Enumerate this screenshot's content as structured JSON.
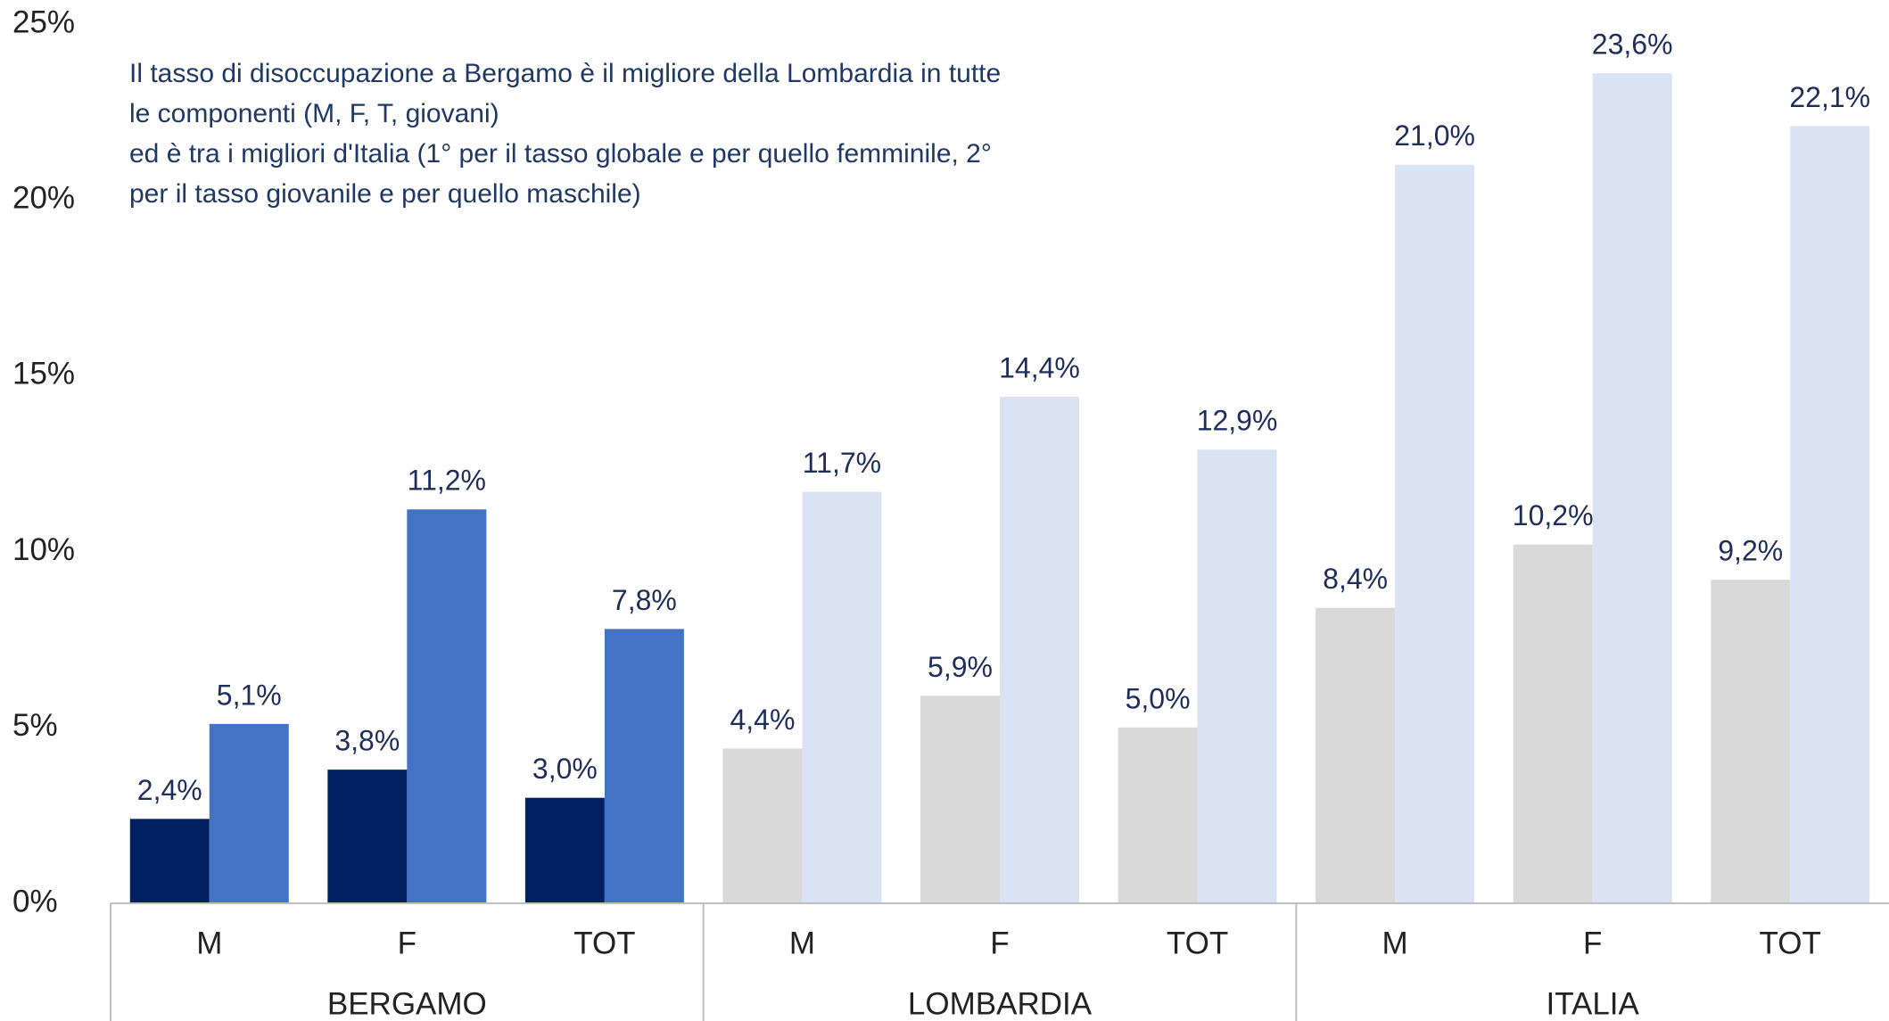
{
  "chart_data": {
    "type": "bar",
    "annotation": [
      "Il tasso di disoccupazione a Bergamo è il migliore della Lombardia in tutte",
      "le componenti (M, F, T, giovani)",
      "ed è tra i migliori d'Italia (1° per il tasso globale e per quello femminile, 2°",
      "per il tasso giovanile e per quello maschile)"
    ],
    "categories": [
      "M",
      "F",
      "TOT",
      "M",
      "F",
      "TOT",
      "M",
      "F",
      "TOT"
    ],
    "groups": [
      "BERGAMO",
      "LOMBARDIA",
      "ITALIA"
    ],
    "series": [
      {
        "colors": [
          "#002060",
          "#002060",
          "#002060",
          "#d9d9d9",
          "#d9d9d9",
          "#d9d9d9",
          "#d9d9d9",
          "#d9d9d9",
          "#d9d9d9"
        ],
        "values": [
          2.4,
          3.8,
          3.0,
          4.4,
          5.9,
          5.0,
          8.4,
          10.2,
          9.2
        ],
        "value_labels": [
          "2,4%",
          "3,8%",
          "3,0%",
          "4,4%",
          "5,9%",
          "5,0%",
          "8,4%",
          "10,2%",
          "9,2%"
        ]
      },
      {
        "colors": [
          "#4472c4",
          "#4472c4",
          "#4472c4",
          "#dae3f3",
          "#dae3f3",
          "#dae3f3",
          "#dae3f3",
          "#dae3f3",
          "#dae3f3"
        ],
        "values": [
          5.1,
          11.2,
          7.8,
          11.7,
          14.4,
          12.9,
          21.0,
          23.6,
          22.1
        ],
        "value_labels": [
          "5,1%",
          "11,2%",
          "7,8%",
          "11,7%",
          "14,4%",
          "12,9%",
          "21,0%",
          "23,6%",
          "22,1%"
        ]
      }
    ],
    "ylim": [
      0,
      25
    ],
    "yticks": [
      {
        "value": 0,
        "label": "0%"
      },
      {
        "value": 5,
        "label": "5%"
      },
      {
        "value": 10,
        "label": "10%"
      },
      {
        "value": 15,
        "label": "15%"
      },
      {
        "value": 20,
        "label": "20%"
      },
      {
        "value": 25,
        "label": "25%"
      }
    ],
    "grid": false
  }
}
